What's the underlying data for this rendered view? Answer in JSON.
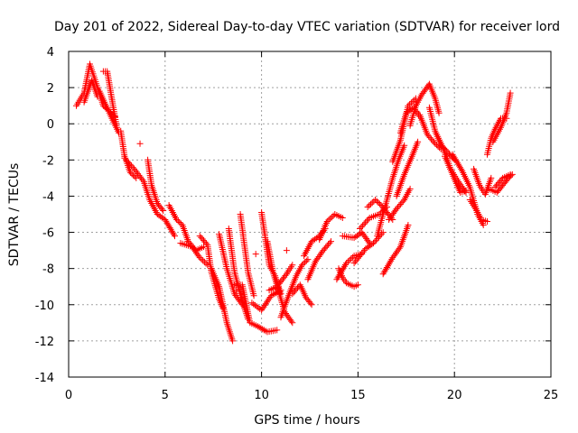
{
  "colors": {
    "series": "#ff0000",
    "grid": "#a0a0a0",
    "axis": "#000000",
    "background": "#ffffff"
  },
  "chart_data": {
    "type": "scatter",
    "title": "Day 201 of 2022, Sidereal Day-to-day VTEC variation (SDTVAR) for receiver lord",
    "xlabel": "GPS time / hours",
    "ylabel": "SDTVAR / TECUs",
    "xlim": [
      0,
      25
    ],
    "ylim": [
      -14,
      4
    ],
    "xticks": [
      0,
      5,
      10,
      15,
      20,
      25
    ],
    "yticks": [
      -14,
      -12,
      -10,
      -8,
      -6,
      -4,
      -2,
      0,
      2,
      4
    ],
    "grid": true,
    "marker": "+",
    "series": [
      {
        "name": "SDTVAR",
        "segments": [
          [
            [
              0.4,
              1.0
            ],
            [
              0.8,
              1.7
            ],
            [
              1.1,
              3.3
            ],
            [
              1.5,
              2.0
            ],
            [
              1.8,
              1.0
            ],
            [
              2.4,
              0.4
            ]
          ],
          [
            [
              0.8,
              1.2
            ],
            [
              1.2,
              2.4
            ],
            [
              1.5,
              1.5
            ]
          ],
          [
            [
              1.8,
              2.9
            ],
            [
              2.0,
              2.9
            ],
            [
              2.3,
              1.0
            ],
            [
              2.5,
              -0.2
            ]
          ],
          [
            [
              1.6,
              1.8
            ],
            [
              2.2,
              0.4
            ],
            [
              2.6,
              -0.5
            ]
          ],
          [
            [
              2.7,
              -0.4
            ],
            [
              2.9,
              -1.8
            ],
            [
              3.2,
              -2.7
            ],
            [
              3.5,
              -3.0
            ]
          ],
          [
            [
              2.9,
              -1.9
            ],
            [
              3.4,
              -2.5
            ],
            [
              3.9,
              -3.2
            ],
            [
              4.2,
              -4.2
            ],
            [
              4.6,
              -5.0
            ],
            [
              5.0,
              -5.3
            ],
            [
              5.5,
              -6.2
            ]
          ],
          [
            [
              4.1,
              -2.0
            ],
            [
              4.3,
              -3.4
            ],
            [
              4.6,
              -4.4
            ],
            [
              4.9,
              -4.8
            ]
          ],
          [
            [
              5.2,
              -4.5
            ],
            [
              5.6,
              -5.3
            ],
            [
              5.9,
              -5.6
            ],
            [
              6.2,
              -6.5
            ],
            [
              6.6,
              -7.0
            ],
            [
              7.0,
              -6.8
            ]
          ],
          [
            [
              5.8,
              -6.6
            ],
            [
              6.4,
              -6.8
            ],
            [
              6.8,
              -7.4
            ],
            [
              7.2,
              -7.8
            ]
          ],
          [
            [
              6.8,
              -6.2
            ],
            [
              7.2,
              -6.7
            ],
            [
              7.4,
              -8.2
            ],
            [
              7.8,
              -9.7
            ],
            [
              8.0,
              -10.2
            ]
          ],
          [
            [
              7.4,
              -8.0
            ],
            [
              7.8,
              -9.0
            ],
            [
              8.2,
              -11.0
            ],
            [
              8.5,
              -12.0
            ]
          ],
          [
            [
              7.8,
              -6.1
            ],
            [
              8.2,
              -8.0
            ],
            [
              8.6,
              -9.4
            ],
            [
              9.0,
              -10.0
            ]
          ],
          [
            [
              8.3,
              -5.8
            ],
            [
              8.6,
              -8.2
            ],
            [
              9.0,
              -9.8
            ],
            [
              9.3,
              -10.8
            ]
          ],
          [
            [
              8.6,
              -8.9
            ],
            [
              9.0,
              -8.9
            ],
            [
              9.4,
              -11.0
            ],
            [
              9.8,
              -11.2
            ],
            [
              10.3,
              -11.5
            ],
            [
              10.8,
              -11.4
            ]
          ],
          [
            [
              8.9,
              -5.0
            ],
            [
              9.3,
              -8.2
            ],
            [
              9.6,
              -9.5
            ]
          ],
          [
            [
              9.5,
              -9.9
            ],
            [
              10.0,
              -10.3
            ],
            [
              10.5,
              -9.5
            ],
            [
              11.0,
              -9.2
            ]
          ],
          [
            [
              10.0,
              -4.9
            ],
            [
              10.4,
              -7.8
            ],
            [
              10.7,
              -8.4
            ],
            [
              11.0,
              -9.4
            ]
          ],
          [
            [
              10.3,
              -6.5
            ],
            [
              10.6,
              -8.2
            ],
            [
              11.2,
              -10.4
            ],
            [
              11.6,
              -11.0
            ]
          ],
          [
            [
              10.4,
              -9.2
            ],
            [
              10.8,
              -9.0
            ],
            [
              11.3,
              -8.3
            ],
            [
              11.6,
              -7.8
            ]
          ],
          [
            [
              11.0,
              -10.7
            ],
            [
              11.4,
              -9.5
            ],
            [
              11.8,
              -8.4
            ],
            [
              12.1,
              -7.8
            ],
            [
              12.4,
              -7.5
            ]
          ],
          [
            [
              11.6,
              -9.4
            ],
            [
              12.0,
              -8.9
            ],
            [
              12.3,
              -9.6
            ],
            [
              12.6,
              -10.0
            ]
          ],
          [
            [
              12.2,
              -7.3
            ],
            [
              12.6,
              -6.5
            ],
            [
              13.0,
              -6.2
            ],
            [
              13.3,
              -5.8
            ]
          ],
          [
            [
              12.4,
              -8.6
            ],
            [
              12.8,
              -7.6
            ],
            [
              13.2,
              -7.0
            ],
            [
              13.6,
              -6.5
            ]
          ],
          [
            [
              13.0,
              -6.4
            ],
            [
              13.4,
              -5.4
            ],
            [
              13.8,
              -5.0
            ],
            [
              14.2,
              -5.2
            ]
          ],
          [
            [
              14.0,
              -8.0
            ],
            [
              14.2,
              -8.5
            ],
            [
              14.4,
              -8.8
            ],
            [
              14.8,
              -9.0
            ],
            [
              15.0,
              -8.9
            ]
          ],
          [
            [
              13.9,
              -8.6
            ],
            [
              14.4,
              -7.7
            ],
            [
              14.8,
              -7.3
            ],
            [
              15.2,
              -7.2
            ]
          ],
          [
            [
              14.2,
              -6.2
            ],
            [
              14.8,
              -6.3
            ],
            [
              15.2,
              -6.0
            ],
            [
              15.6,
              -6.6
            ]
          ],
          [
            [
              14.8,
              -7.7
            ],
            [
              15.4,
              -6.9
            ],
            [
              15.8,
              -6.6
            ],
            [
              16.3,
              -6.0
            ]
          ],
          [
            [
              15.1,
              -5.8
            ],
            [
              15.6,
              -5.2
            ],
            [
              16.1,
              -5.0
            ],
            [
              16.5,
              -4.6
            ]
          ],
          [
            [
              15.5,
              -4.6
            ],
            [
              15.9,
              -4.2
            ],
            [
              16.2,
              -4.5
            ],
            [
              16.5,
              -4.9
            ],
            [
              16.8,
              -5.3
            ]
          ],
          [
            [
              16.3,
              -8.3
            ],
            [
              16.8,
              -7.4
            ],
            [
              17.2,
              -6.8
            ],
            [
              17.6,
              -5.6
            ]
          ],
          [
            [
              16.6,
              -5.3
            ],
            [
              17.0,
              -4.7
            ],
            [
              17.4,
              -4.2
            ],
            [
              17.7,
              -3.6
            ]
          ],
          [
            [
              16.0,
              -6.2
            ],
            [
              16.4,
              -4.6
            ],
            [
              16.8,
              -3.0
            ],
            [
              17.1,
              -2.0
            ],
            [
              17.4,
              -1.2
            ]
          ],
          [
            [
              17.0,
              -4.0
            ],
            [
              17.4,
              -2.8
            ],
            [
              17.8,
              -1.8
            ],
            [
              18.1,
              -1.0
            ]
          ],
          [
            [
              16.8,
              -2.1
            ],
            [
              17.2,
              -0.9
            ],
            [
              17.6,
              1.0
            ],
            [
              18.0,
              1.4
            ]
          ],
          [
            [
              17.2,
              -0.5
            ],
            [
              17.5,
              0.6
            ],
            [
              17.9,
              0.9
            ],
            [
              18.2,
              0.4
            ]
          ],
          [
            [
              17.7,
              -0.1
            ],
            [
              18.0,
              1.0
            ],
            [
              18.3,
              1.6
            ],
            [
              18.7,
              2.2
            ],
            [
              19.0,
              1.4
            ],
            [
              19.2,
              0.6
            ]
          ],
          [
            [
              18.2,
              0.5
            ],
            [
              18.6,
              -0.6
            ],
            [
              19.0,
              -1.1
            ],
            [
              19.3,
              -1.4
            ]
          ],
          [
            [
              18.7,
              0.9
            ],
            [
              19.0,
              -0.4
            ],
            [
              19.3,
              -1.2
            ],
            [
              19.6,
              -1.5
            ],
            [
              20.0,
              -2.0
            ]
          ],
          [
            [
              19.0,
              -0.4
            ],
            [
              19.4,
              -1.3
            ],
            [
              19.8,
              -2.5
            ],
            [
              20.2,
              -3.2
            ],
            [
              20.6,
              -3.8
            ]
          ],
          [
            [
              19.5,
              -1.8
            ],
            [
              19.9,
              -2.8
            ],
            [
              20.3,
              -3.8
            ],
            [
              20.6,
              -3.7
            ]
          ],
          [
            [
              19.9,
              -1.7
            ],
            [
              20.4,
              -2.6
            ],
            [
              20.8,
              -3.5
            ],
            [
              21.2,
              -5.0
            ],
            [
              21.5,
              -5.6
            ]
          ],
          [
            [
              20.8,
              -4.2
            ],
            [
              21.1,
              -4.7
            ],
            [
              21.4,
              -5.3
            ],
            [
              21.7,
              -5.4
            ]
          ],
          [
            [
              21.0,
              -2.5
            ],
            [
              21.3,
              -3.4
            ],
            [
              21.6,
              -3.9
            ],
            [
              21.9,
              -3.0
            ]
          ],
          [
            [
              21.7,
              -1.7
            ],
            [
              21.9,
              -0.8
            ],
            [
              22.1,
              -0.3
            ],
            [
              22.4,
              0.3
            ],
            [
              22.7,
              0.3
            ]
          ],
          [
            [
              22.0,
              -1.0
            ],
            [
              22.4,
              -0.2
            ],
            [
              22.7,
              0.6
            ],
            [
              22.9,
              1.7
            ]
          ],
          [
            [
              21.8,
              -3.6
            ],
            [
              22.2,
              -3.8
            ],
            [
              22.5,
              -3.4
            ],
            [
              22.8,
              -3.0
            ],
            [
              23.0,
              -2.8
            ]
          ],
          [
            [
              22.1,
              -3.5
            ],
            [
              22.5,
              -3.0
            ],
            [
              22.9,
              -2.8
            ]
          ]
        ],
        "isolated_points": [
          [
            3.7,
            -1.1
          ],
          [
            9.7,
            -7.2
          ],
          [
            8.7,
            -9.2
          ],
          [
            11.3,
            -7.0
          ],
          [
            13.3,
            -5.6
          ]
        ]
      }
    ]
  }
}
